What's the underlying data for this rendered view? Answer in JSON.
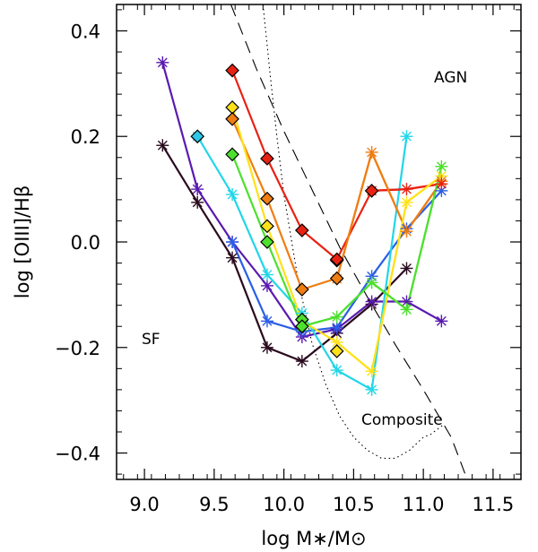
{
  "chart_data": {
    "type": "line",
    "title": "",
    "xlabel": "log M∗/M⊙",
    "ylabel": "log [OIII]/Hβ",
    "xlim": [
      8.8,
      11.7
    ],
    "ylim": [
      -0.45,
      0.45
    ],
    "xticks": [
      "9.0",
      "9.5",
      "10.0",
      "10.5",
      "11.0",
      "11.5"
    ],
    "yticks": [
      "−0.4",
      "−0.2",
      "0.0",
      "0.2",
      "0.4"
    ],
    "xtick_values": [
      9.0,
      9.5,
      10.0,
      10.5,
      11.0,
      11.5
    ],
    "ytick_values": [
      -0.4,
      -0.2,
      0.0,
      0.2,
      0.4
    ],
    "annotations": [
      "AGN",
      "SF",
      "Composite"
    ],
    "grid": false,
    "series": [
      {
        "color": "#2a0a1e",
        "marker": "asterisk",
        "x": [
          9.13,
          9.38,
          9.63,
          9.88,
          10.13,
          10.38,
          10.63,
          10.88
        ],
        "y": [
          0.183,
          0.075,
          -0.03,
          -0.2,
          -0.226,
          -0.173,
          -0.118,
          -0.05
        ]
      },
      {
        "color": "#5a1ab0",
        "marker": "asterisk",
        "x": [
          9.13,
          9.38,
          9.63,
          9.88,
          10.13,
          10.38,
          10.63,
          10.88,
          11.13
        ],
        "y": [
          0.34,
          0.1,
          0.0,
          -0.083,
          -0.18,
          -0.165,
          -0.113,
          -0.113,
          -0.15
        ]
      },
      {
        "color": "#2c5fe6",
        "marker": "asterisk",
        "x": [
          9.63,
          9.88,
          10.13,
          10.38,
          10.63,
          10.88,
          11.13
        ],
        "y": [
          0.0,
          -0.15,
          -0.17,
          -0.162,
          -0.065,
          0.025,
          0.097
        ]
      },
      {
        "color": "#22d6e8",
        "marker": "asterisk",
        "x": [
          9.38,
          9.63,
          9.88,
          10.13,
          10.38,
          10.63,
          10.88
        ],
        "y": [
          0.2,
          0.09,
          -0.062,
          -0.135,
          -0.243,
          -0.28,
          0.2
        ]
      },
      {
        "color": "#4de02e",
        "marker": "asterisk",
        "x": [
          10.13,
          10.38,
          10.63,
          10.88,
          11.13
        ],
        "y": [
          -0.16,
          -0.142,
          -0.077,
          -0.128,
          0.143
        ]
      },
      {
        "color": "#ffe11a",
        "marker": "asterisk",
        "x": [
          10.38,
          10.63,
          10.88,
          11.13
        ],
        "y": [
          -0.19,
          -0.245,
          0.075,
          0.125
        ]
      },
      {
        "color": "#ef7d12",
        "marker": "asterisk",
        "x": [
          10.38,
          10.63,
          10.88,
          11.13
        ],
        "y": [
          -0.07,
          0.17,
          0.02,
          0.115
        ]
      },
      {
        "color": "#e82212",
        "marker": "asterisk",
        "x": [
          10.63,
          10.88,
          11.13
        ],
        "y": [
          0.097,
          0.1,
          0.11
        ]
      },
      {
        "color": "#2cc8e8",
        "marker": "diamond",
        "x": [
          9.38
        ],
        "y": [
          0.2
        ]
      },
      {
        "color": "#4de02e",
        "marker": "diamond",
        "x": [
          9.63,
          9.88,
          10.13,
          10.13
        ],
        "y": [
          0.166,
          0.0,
          -0.147,
          -0.16
        ]
      },
      {
        "color": "#ffe11a",
        "marker": "diamond",
        "x": [
          9.63,
          9.88,
          10.38
        ],
        "y": [
          0.255,
          0.03,
          -0.207
        ]
      },
      {
        "color": "#ef7d12",
        "marker": "diamond",
        "x": [
          9.63,
          9.88,
          10.13,
          10.38,
          10.38
        ],
        "y": [
          0.233,
          0.082,
          -0.09,
          -0.069,
          -0.035
        ]
      },
      {
        "color": "#e82212",
        "marker": "diamond",
        "x": [
          9.63,
          9.88,
          10.13,
          10.38,
          10.63
        ],
        "y": [
          0.325,
          0.158,
          0.022,
          -0.033,
          0.097
        ]
      },
      {
        "color": "#e82212",
        "marker": "none",
        "x": [
          9.63,
          9.88,
          10.13,
          10.38,
          10.63,
          10.88,
          11.13
        ],
        "y": [
          0.325,
          0.158,
          0.022,
          -0.033,
          0.097,
          0.1,
          0.11
        ]
      },
      {
        "color": "#ef7d12",
        "marker": "none",
        "x": [
          9.63,
          9.88,
          10.13,
          10.38,
          10.63,
          10.88,
          11.13
        ],
        "y": [
          0.233,
          0.082,
          -0.09,
          -0.069,
          0.17,
          0.02,
          0.115
        ]
      },
      {
        "color": "#ffe11a",
        "marker": "none",
        "x": [
          9.63,
          9.88,
          10.13,
          10.38,
          10.63,
          10.88,
          11.13
        ],
        "y": [
          0.255,
          0.03,
          -0.15,
          -0.19,
          -0.245,
          0.075,
          0.125
        ]
      },
      {
        "color": "#4de02e",
        "marker": "none",
        "x": [
          9.63,
          9.88,
          10.13,
          10.38,
          10.63,
          10.88,
          11.13
        ],
        "y": [
          0.166,
          0.0,
          -0.16,
          -0.142,
          -0.077,
          -0.128,
          0.143
        ]
      }
    ],
    "boundary_curves": [
      {
        "style": "dashed",
        "x": [
          9.62,
          9.8,
          10.0,
          10.2,
          10.4,
          10.6,
          10.8,
          11.0,
          11.2,
          11.3
        ],
        "y": [
          0.45,
          0.33,
          0.21,
          0.1,
          -0.01,
          -0.105,
          -0.195,
          -0.28,
          -0.37,
          -0.44
        ]
      },
      {
        "style": "dotted",
        "x": [
          9.85,
          9.9,
          9.95,
          10.0,
          10.1,
          10.2,
          10.3,
          10.4,
          10.5,
          10.6,
          10.7,
          10.8,
          10.9,
          11.0,
          11.05,
          11.1,
          11.15
        ],
        "y": [
          0.45,
          0.32,
          0.2,
          0.09,
          -0.07,
          -0.19,
          -0.27,
          -0.33,
          -0.37,
          -0.395,
          -0.41,
          -0.41,
          -0.395,
          -0.37,
          -0.365,
          -0.355,
          -0.345
        ]
      }
    ]
  }
}
